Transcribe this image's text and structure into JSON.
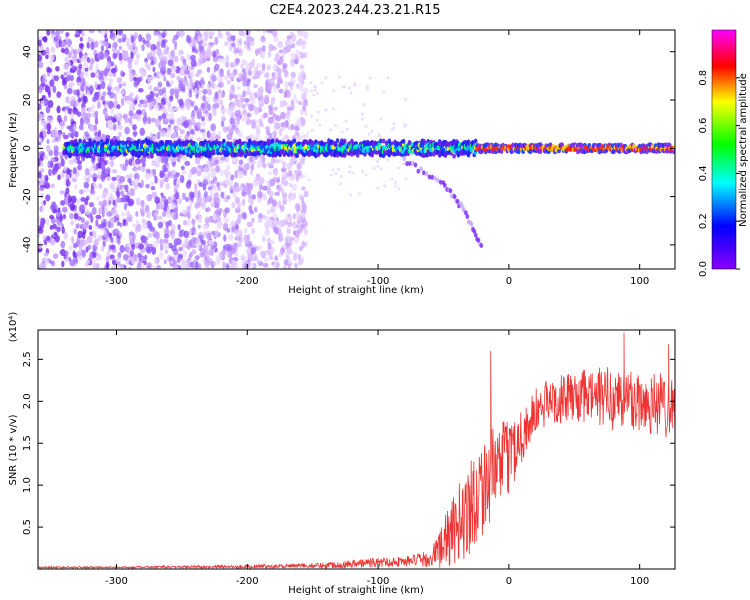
{
  "title": "C2E4.2023.244.23.21.R15",
  "chart_data": [
    {
      "type": "heatmap",
      "xlabel": "Height of straight line (km)",
      "ylabel": "Frequency (Hz)",
      "xlim": [
        -360,
        127
      ],
      "ylim": [
        -50,
        49
      ],
      "x_ticks": [
        -300,
        -200,
        -100,
        0,
        100
      ],
      "y_ticks": [
        -40,
        -20,
        0,
        20,
        40
      ],
      "colorbar": {
        "label": "Normalized spectral amplitude",
        "range": [
          0.0,
          1.0
        ],
        "ticks": [
          "0.0",
          "0.2",
          "0.4",
          "0.6",
          "0.8"
        ],
        "colors": [
          "#ff00ff",
          "#ff0000",
          "#ffff00",
          "#00ff00",
          "#00ffff",
          "#0000ff",
          "#8800ff"
        ]
      },
      "features": {
        "noise_region": [
          -360,
          -155
        ],
        "central_band_frequency": 0,
        "strong_carrier_from": -25,
        "diverging_tail": {
          "x": [
            -80,
            -50,
            -35,
            -20
          ],
          "y": [
            -5,
            -15,
            -25,
            -42
          ]
        }
      }
    },
    {
      "type": "line",
      "xlabel": "Height of straight line (km)",
      "ylabel": "SNR (10 * v/v)",
      "y_multiplier": "(x10⁴)",
      "xlim": [
        -360,
        127
      ],
      "ylim": [
        0,
        2.85
      ],
      "x_ticks": [
        -300,
        -200,
        -100,
        0,
        100
      ],
      "y_ticks": [
        "0.5",
        "1.0",
        "1.5",
        "2.0",
        "2.5"
      ],
      "color": "#ee3333",
      "series_envelope": {
        "x": [
          -360,
          -300,
          -200,
          -150,
          -120,
          -100,
          -80,
          -60,
          -50,
          -40,
          -30,
          -20,
          -10,
          0,
          10,
          20,
          30,
          50,
          80,
          100,
          127
        ],
        "mean": [
          0.02,
          0.02,
          0.03,
          0.04,
          0.06,
          0.08,
          0.09,
          0.12,
          0.3,
          0.5,
          0.75,
          1.0,
          1.2,
          1.35,
          1.6,
          1.85,
          2.0,
          2.05,
          2.05,
          2.0,
          1.95
        ],
        "spread": [
          0.01,
          0.01,
          0.02,
          0.03,
          0.05,
          0.06,
          0.06,
          0.1,
          0.3,
          0.45,
          0.6,
          0.6,
          0.5,
          0.45,
          0.35,
          0.3,
          0.28,
          0.3,
          0.4,
          0.4,
          0.4
        ]
      },
      "peak_spikes": [
        {
          "x": -14,
          "y": 2.6
        },
        {
          "x": 88,
          "y": 2.82
        },
        {
          "x": 122,
          "y": 2.68
        }
      ]
    }
  ]
}
